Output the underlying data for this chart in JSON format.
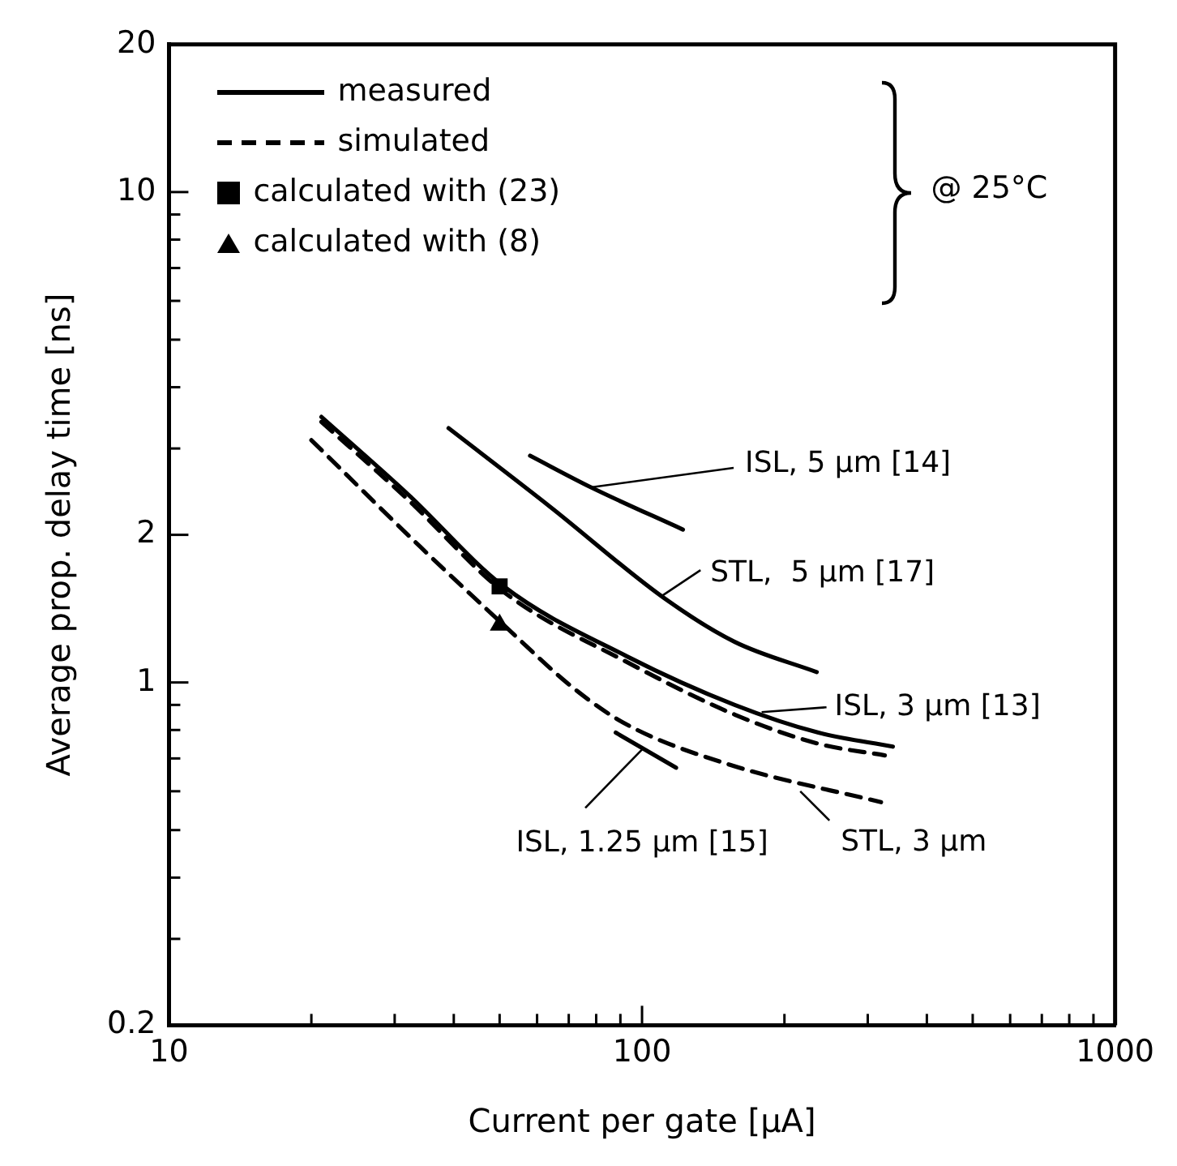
{
  "chart_data": {
    "type": "line",
    "xlabel": "Current per gate [µA]",
    "ylabel": "Average prop. delay time [ns]",
    "log": "xy",
    "grid": false,
    "legend": "top left",
    "xlim": [
      10,
      1000
    ],
    "ylim": [
      0.2,
      20
    ],
    "xticks": [
      10,
      {
        "value": 20,
        "label": null
      },
      {
        "value": 30,
        "label": null
      },
      {
        "value": 40,
        "label": null
      },
      {
        "value": 50,
        "label": null
      },
      {
        "value": 60,
        "label": null
      },
      {
        "value": 70,
        "label": null
      },
      {
        "value": 80,
        "label": null
      },
      {
        "value": 90,
        "label": null
      },
      100,
      {
        "value": 200,
        "label": null
      },
      {
        "value": 300,
        "label": null
      },
      {
        "value": 400,
        "label": null
      },
      {
        "value": 500,
        "label": null
      },
      {
        "value": 600,
        "label": null
      },
      {
        "value": 700,
        "label": null
      },
      {
        "value": 800,
        "label": null
      },
      {
        "value": 900,
        "label": null
      },
      1000
    ],
    "yticks": [
      0.2,
      {
        "value": 0.3,
        "label": null
      },
      {
        "value": 0.4,
        "label": null
      },
      {
        "value": 0.5,
        "label": null
      },
      {
        "value": 0.6,
        "label": null
      },
      {
        "value": 0.7,
        "label": null
      },
      {
        "value": 0.8,
        "label": null
      },
      {
        "value": 0.9,
        "label": null
      },
      1,
      2,
      {
        "value": 3,
        "label": null
      },
      {
        "value": 4,
        "label": null
      },
      {
        "value": 5,
        "label": null
      },
      {
        "value": 6,
        "label": null
      },
      {
        "value": 7,
        "label": null
      },
      {
        "value": 8,
        "label": null
      },
      {
        "value": 9,
        "label": null
      },
      10,
      20
    ],
    "series": [
      {
        "type": "line",
        "color": "#000000",
        "line_style": "solid",
        "marker": "none",
        "x": [
          58,
          78,
          122
        ],
        "values": [
          2.9,
          2.5,
          2.05
        ]
      },
      {
        "type": "line",
        "color": "#000000",
        "line_style": "solid",
        "marker": "none",
        "x": [
          39,
          64,
          112,
          157,
          234
        ],
        "values": [
          3.3,
          2.28,
          1.48,
          1.21,
          1.05
        ]
      },
      {
        "type": "line",
        "name": "measured",
        "color": "#000000",
        "line_style": "solid",
        "marker": "none",
        "x": [
          21,
          32,
          51,
          93,
          157,
          236,
          339
        ],
        "values": [
          3.48,
          2.42,
          1.57,
          1.13,
          0.9,
          0.79,
          0.74
        ]
      },
      {
        "type": "line",
        "name": "simulated",
        "color": "#000000",
        "line_style": "dashed",
        "marker": "none",
        "x": [
          21,
          32,
          51,
          93,
          157,
          236,
          326
        ],
        "values": [
          3.4,
          2.36,
          1.53,
          1.1,
          0.86,
          0.75,
          0.71
        ]
      },
      {
        "type": "line",
        "color": "#000000",
        "line_style": "dashed",
        "marker": "none",
        "x": [
          20,
          34,
          51,
          72,
          93,
          153,
          320
        ],
        "values": [
          3.12,
          1.89,
          1.31,
          0.97,
          0.82,
          0.68,
          0.57
        ]
      },
      {
        "type": "line",
        "color": "#000000",
        "line_style": "solid",
        "marker": "none",
        "x": [
          88,
          118
        ],
        "values": [
          0.79,
          0.67
        ]
      },
      {
        "type": "scatter",
        "name": "calculated with (23)",
        "color": "#000000",
        "marker": "square",
        "x": [
          50
        ],
        "values": [
          1.57
        ]
      },
      {
        "type": "scatter",
        "name": "calculated with (8)",
        "color": "#000000",
        "marker": "triangle",
        "x": [
          50
        ],
        "values": [
          1.31
        ]
      }
    ],
    "annotations": [
      "@ 25°C",
      {
        "text": "ISL, 5 µm [14]",
        "x": 78,
        "y": 2.5
      },
      {
        "text": "STL,  5 µm [17]",
        "x": 110,
        "y": 1.5
      },
      {
        "text": "ISL, 3 µm [13]",
        "x": 179,
        "y": 0.87
      },
      {
        "text": "ISL, 1.25 µm [15]",
        "x": 100,
        "y": 0.73
      },
      {
        "text": "STL, 3 µm",
        "x": 216,
        "y": 0.6
      }
    ]
  }
}
